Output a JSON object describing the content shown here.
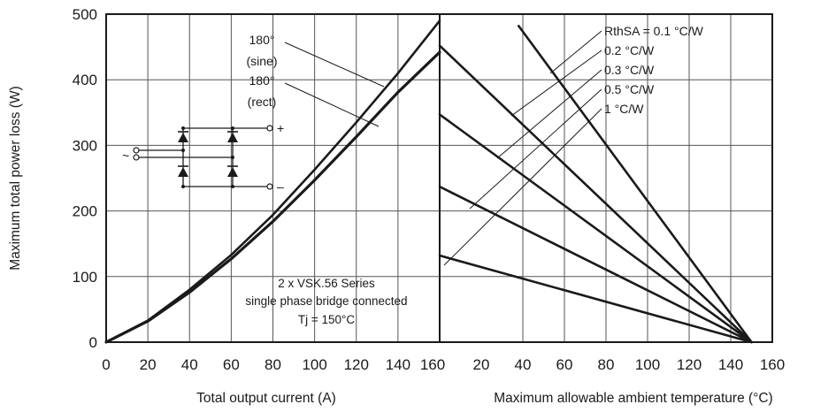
{
  "chart_data": [
    {
      "type": "line",
      "panel": "left",
      "xlabel": "Total output current (A)",
      "ylabel": "Maximum total power loss (W)",
      "xlim": [
        0,
        160
      ],
      "ylim": [
        0,
        500
      ],
      "x_ticks": [
        "0",
        "20",
        "40",
        "60",
        "80",
        "100",
        "120",
        "140",
        "160"
      ],
      "y_ticks": [
        "0",
        "100",
        "200",
        "300",
        "400",
        "500"
      ],
      "grid": true,
      "series": [
        {
          "name": "180° (sine)",
          "x": [
            0,
            20,
            40,
            60,
            80,
            100,
            120,
            140,
            160
          ],
          "y": [
            0,
            33,
            80,
            133,
            194,
            263,
            335,
            410,
            490
          ]
        },
        {
          "name": "180° (rect)",
          "x": [
            0,
            20,
            40,
            60,
            80,
            100,
            120,
            140,
            160
          ],
          "y": [
            0,
            32,
            76,
            127,
            184,
            247,
            313,
            381,
            442
          ]
        }
      ],
      "annotations": [
        {
          "label": "180°",
          "line2": "(sine)"
        },
        {
          "label": "180°",
          "line2": "(rect)"
        },
        {
          "label": "2 x VSK.56 Series",
          "line2": "single phase bridge connected",
          "line3": "Tj = 150°C"
        }
      ],
      "circuit_symbols": {
        "ac": "~",
        "plus": "+",
        "minus": "–"
      }
    },
    {
      "type": "line",
      "panel": "right",
      "xlabel": "Maximum allowable ambient temperature (°C)",
      "xlim": [
        0,
        160
      ],
      "ylim": [
        0,
        500
      ],
      "x_ticks": [
        "20",
        "40",
        "60",
        "80",
        "100",
        "120",
        "140",
        "160"
      ],
      "grid": true,
      "series": [
        {
          "name": "RthSA = 0.1 °C/W",
          "x": [
            38,
            150
          ],
          "y": [
            482,
            0
          ]
        },
        {
          "name": "0.2 °C/W",
          "x": [
            0,
            150
          ],
          "y": [
            452,
            0
          ]
        },
        {
          "name": "0.3 °C/W",
          "x": [
            0,
            150
          ],
          "y": [
            347,
            0
          ]
        },
        {
          "name": "0.5 °C/W",
          "x": [
            0,
            150
          ],
          "y": [
            237,
            0
          ]
        },
        {
          "name": "1 °C/W",
          "x": [
            0,
            150
          ],
          "y": [
            132,
            0
          ]
        }
      ]
    }
  ],
  "colors": {
    "curve": "#1a1a1a",
    "grid": "#555555",
    "frame": "#1a1a1a"
  }
}
